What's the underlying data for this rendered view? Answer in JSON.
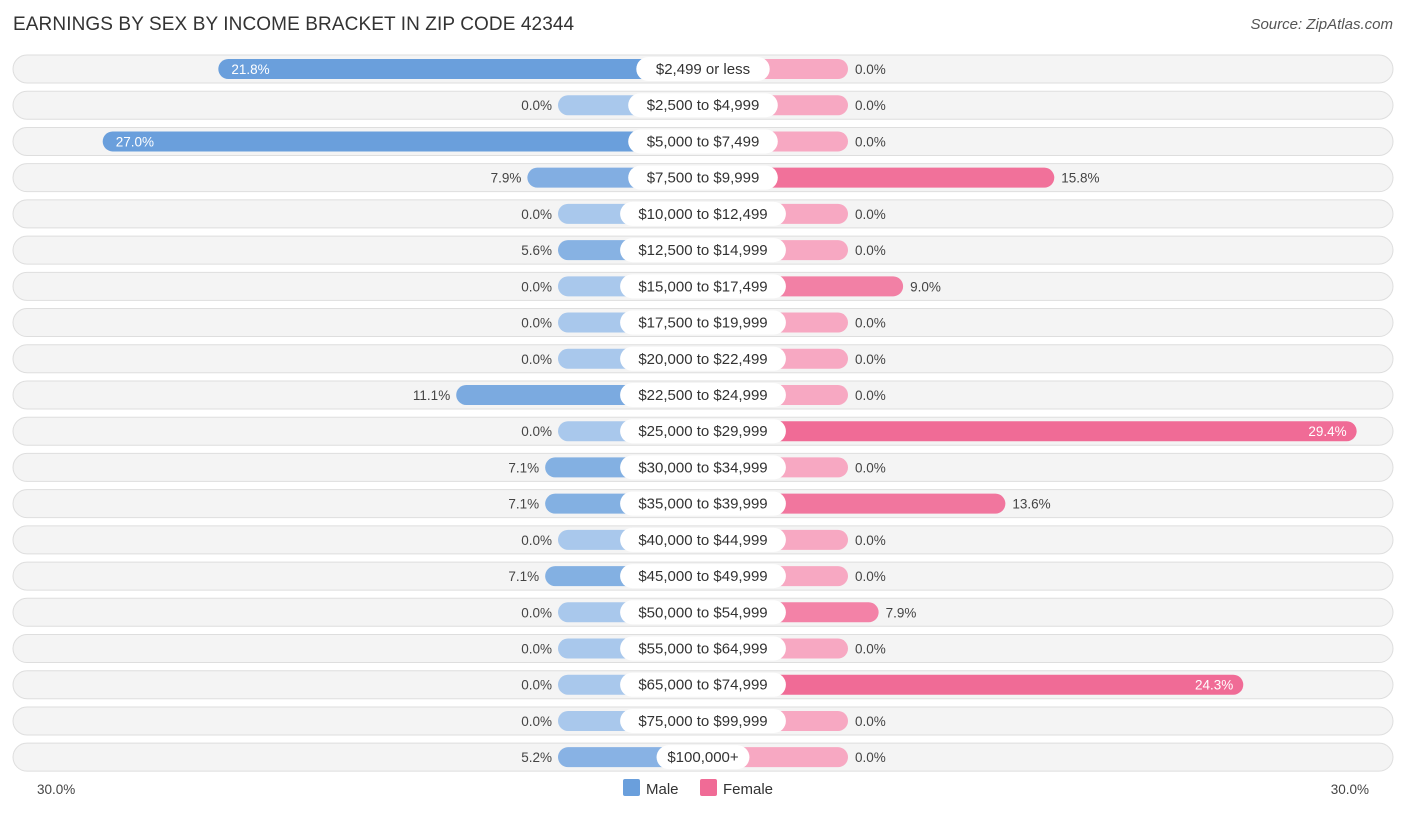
{
  "header": {
    "title": "EARNINGS BY SEX BY INCOME BRACKET IN ZIP CODE 42344",
    "source": "Source: ZipAtlas.com"
  },
  "colors": {
    "male_strong": "#6a9fdc",
    "male_light": "#a9c8ec",
    "female_strong": "#f06b96",
    "female_light": "#f7a8c2",
    "row_bg": "#f4f4f4"
  },
  "chart_data": {
    "type": "bar",
    "orientation": "horizontal-diverging",
    "title": "EARNINGS BY SEX BY INCOME BRACKET IN ZIP CODE 42344",
    "xlabel": "",
    "ylabel": "",
    "xlim": [
      -30,
      30
    ],
    "axis_labels": {
      "left": "30.0%",
      "right": "30.0%"
    },
    "legend": {
      "position": "bottom-center",
      "entries": [
        "Male",
        "Female"
      ]
    },
    "categories": [
      "$2,499 or less",
      "$2,500 to $4,999",
      "$5,000 to $7,499",
      "$7,500 to $9,999",
      "$10,000 to $12,499",
      "$12,500 to $14,999",
      "$15,000 to $17,499",
      "$17,500 to $19,999",
      "$20,000 to $22,499",
      "$22,500 to $24,999",
      "$25,000 to $29,999",
      "$30,000 to $34,999",
      "$35,000 to $39,999",
      "$40,000 to $44,999",
      "$45,000 to $49,999",
      "$50,000 to $54,999",
      "$55,000 to $64,999",
      "$65,000 to $74,999",
      "$75,000 to $99,999",
      "$100,000+"
    ],
    "series": [
      {
        "name": "Male",
        "values": [
          21.8,
          0.0,
          27.0,
          7.9,
          0.0,
          5.6,
          0.0,
          0.0,
          0.0,
          11.1,
          0.0,
          7.1,
          7.1,
          0.0,
          7.1,
          0.0,
          0.0,
          0.0,
          0.0,
          5.2
        ],
        "labels": [
          "21.8%",
          "0.0%",
          "27.0%",
          "7.9%",
          "0.0%",
          "5.6%",
          "0.0%",
          "0.0%",
          "0.0%",
          "11.1%",
          "0.0%",
          "7.1%",
          "7.1%",
          "0.0%",
          "7.1%",
          "0.0%",
          "0.0%",
          "0.0%",
          "0.0%",
          "5.2%"
        ]
      },
      {
        "name": "Female",
        "values": [
          0.0,
          0.0,
          0.0,
          15.8,
          0.0,
          0.0,
          9.0,
          0.0,
          0.0,
          0.0,
          29.4,
          0.0,
          13.6,
          0.0,
          0.0,
          7.9,
          0.0,
          24.3,
          0.0,
          0.0
        ],
        "labels": [
          "0.0%",
          "0.0%",
          "0.0%",
          "15.8%",
          "0.0%",
          "0.0%",
          "9.0%",
          "0.0%",
          "0.0%",
          "0.0%",
          "29.4%",
          "0.0%",
          "13.6%",
          "0.0%",
          "0.0%",
          "7.9%",
          "0.0%",
          "24.3%",
          "0.0%",
          "0.0%"
        ]
      }
    ]
  }
}
